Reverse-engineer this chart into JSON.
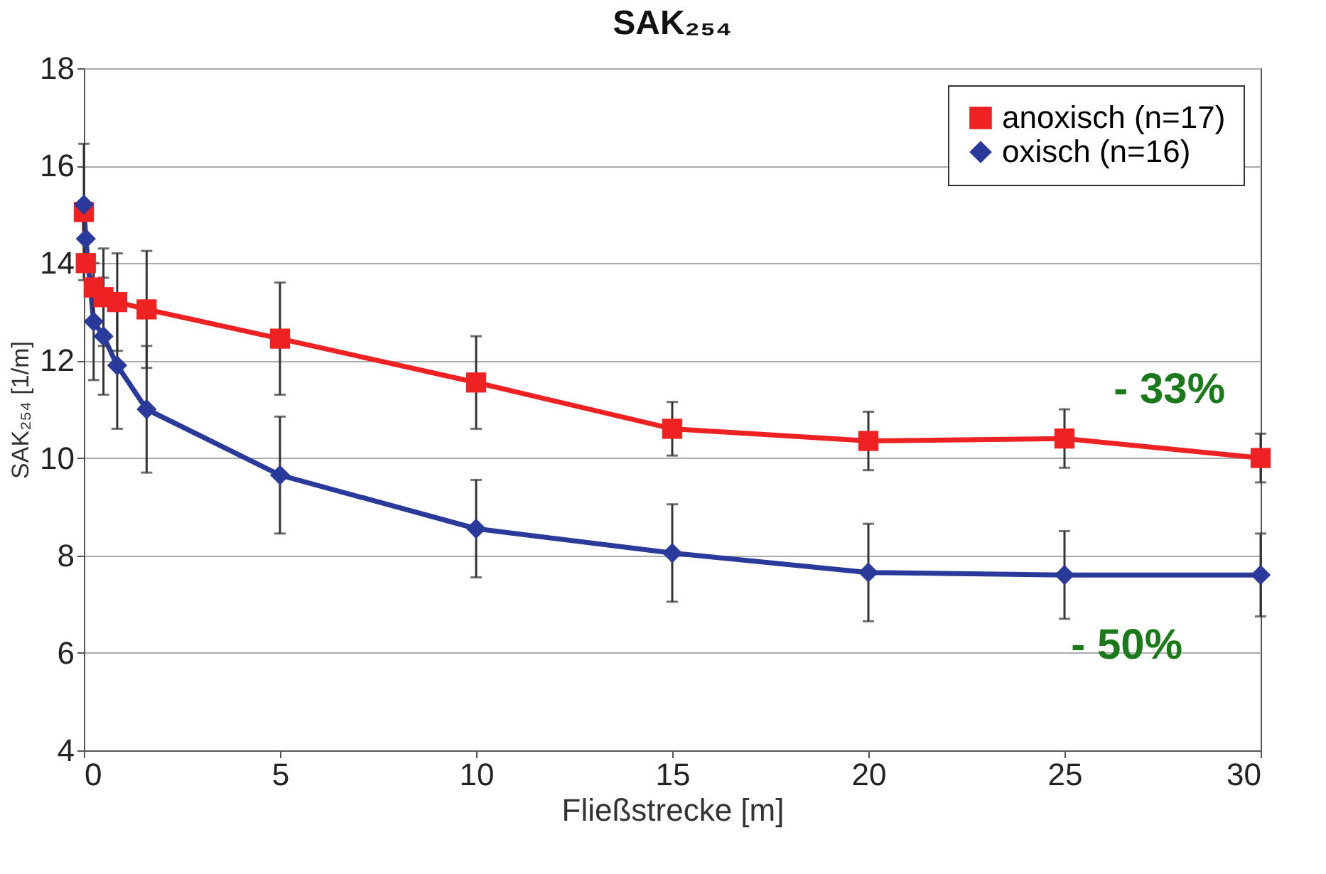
{
  "chart_data": {
    "type": "line",
    "title": "SAK₂₅₄",
    "xlabel": "Fließstrecke [m]",
    "ylabel": "SAK₂₅₄ [1/m]",
    "x": [
      0,
      0.05,
      0.25,
      0.5,
      0.85,
      1.6,
      5,
      10,
      15,
      20,
      25,
      30
    ],
    "series": [
      {
        "name": "anoxisch (n=17)",
        "color": "#ee2222",
        "marker": "square",
        "values": [
          15.05,
          14.0,
          13.5,
          13.3,
          13.2,
          13.05,
          12.45,
          11.55,
          10.6,
          10.35,
          10.4,
          10.0
        ],
        "errors": [
          1.4,
          null,
          null,
          1.0,
          1.0,
          1.2,
          1.15,
          0.95,
          0.55,
          0.6,
          0.6,
          0.5
        ]
      },
      {
        "name": "oxisch (n=16)",
        "color": "#2a3a9a",
        "marker": "diamond",
        "values": [
          15.2,
          14.5,
          12.8,
          12.5,
          11.9,
          11.0,
          9.65,
          8.55,
          8.05,
          7.65,
          7.6,
          7.6
        ],
        "errors": [
          null,
          null,
          1.2,
          1.2,
          1.3,
          1.3,
          1.2,
          1.0,
          1.0,
          1.0,
          0.9,
          0.85
        ]
      }
    ],
    "annotations": [
      "- 33%",
      "- 50%"
    ],
    "xlim": [
      0,
      30
    ],
    "xticks": [
      0,
      5,
      10,
      15,
      20,
      25,
      30
    ],
    "ylim": [
      4,
      18
    ],
    "yticks": [
      4,
      6,
      8,
      10,
      12,
      14,
      16,
      18
    ],
    "grid": "y",
    "legend": "top right",
    "line_style": "solid"
  }
}
